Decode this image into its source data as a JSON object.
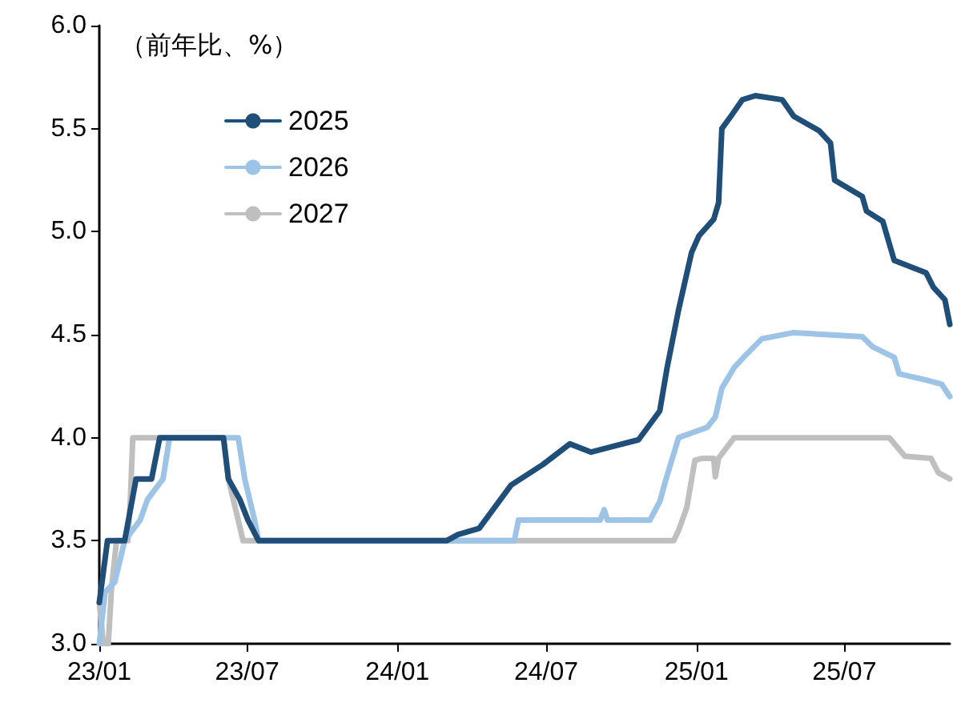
{
  "chart_data": {
    "type": "line",
    "annotations": [
      "（前年比、%）"
    ],
    "legend": "top left",
    "marker": "none",
    "line_style": "solid",
    "grid": false,
    "xlim": [
      "2023-01-01",
      "2025-11-07"
    ],
    "xticks": [
      {
        "value": "2023-01-01",
        "label": "23/01"
      },
      {
        "value": "2023-07-01",
        "label": "23/07"
      },
      {
        "value": "2024-01-01",
        "label": "24/01"
      },
      {
        "value": "2024-07-01",
        "label": "24/07"
      },
      {
        "value": "2025-01-01",
        "label": "25/01"
      },
      {
        "value": "2025-07-01",
        "label": "25/07"
      }
    ],
    "ylim": [
      3,
      6
    ],
    "yticks": [
      {
        "value": 3,
        "label": "3.0"
      },
      {
        "value": 3.5,
        "label": "3.5"
      },
      {
        "value": 4,
        "label": "4.0"
      },
      {
        "value": 4.5,
        "label": "4.5"
      },
      {
        "value": 5,
        "label": "5.0"
      },
      {
        "value": 5.5,
        "label": "5.5"
      },
      {
        "value": 6,
        "label": "6.0"
      }
    ],
    "series": [
      {
        "name": "2025",
        "color": "#1f4e79",
        "x": [
          "2023-01-01",
          "2023-01-11",
          "2023-02-01",
          "2023-02-15",
          "2023-03-06",
          "2023-03-16",
          "2023-06-02",
          "2023-06-08",
          "2023-06-22",
          "2023-07-02",
          "2023-07-15",
          "2024-03-01",
          "2024-03-15",
          "2024-04-10",
          "2024-05-19",
          "2024-06-27",
          "2024-07-30",
          "2024-08-25",
          "2024-10-22",
          "2024-11-17",
          "2024-11-26",
          "2024-12-10",
          "2024-12-26",
          "2025-01-04",
          "2025-01-22",
          "2025-01-28",
          "2025-02-01",
          "2025-02-12",
          "2025-02-26",
          "2025-03-14",
          "2025-04-16",
          "2025-04-30",
          "2025-05-31",
          "2025-06-14",
          "2025-06-19",
          "2025-07-23",
          "2025-07-28",
          "2025-08-17",
          "2025-08-31",
          "2025-10-09",
          "2025-10-18",
          "2025-11-01",
          "2025-11-07"
        ],
        "values": [
          3.2,
          3.5,
          3.5,
          3.8,
          3.8,
          4.0,
          4.0,
          3.8,
          3.7,
          3.6,
          3.5,
          3.5,
          3.53,
          3.56,
          3.77,
          3.87,
          3.97,
          3.93,
          3.99,
          4.13,
          4.34,
          4.62,
          4.9,
          4.98,
          5.06,
          5.14,
          5.5,
          5.56,
          5.64,
          5.66,
          5.64,
          5.56,
          5.49,
          5.43,
          5.25,
          5.17,
          5.1,
          5.05,
          4.86,
          4.8,
          4.73,
          4.67,
          4.55
        ]
      },
      {
        "name": "2026",
        "color": "#9dc3e6",
        "x": [
          "2023-01-01",
          "2023-01-08",
          "2023-01-20",
          "2023-02-01",
          "2023-02-20",
          "2023-03-01",
          "2023-03-20",
          "2023-03-28",
          "2023-06-20",
          "2023-06-28",
          "2023-07-10",
          "2023-07-15",
          "2024-05-23",
          "2024-05-28",
          "2024-09-05",
          "2024-09-10",
          "2024-09-14",
          "2024-11-05",
          "2024-11-17",
          "2024-11-24",
          "2024-12-10",
          "2025-01-14",
          "2025-01-24",
          "2025-02-01",
          "2025-02-16",
          "2025-03-02",
          "2025-03-22",
          "2025-04-30",
          "2025-07-23",
          "2025-08-05",
          "2025-08-31",
          "2025-09-06",
          "2025-10-09",
          "2025-10-28",
          "2025-11-07"
        ],
        "values": [
          3.0,
          3.25,
          3.3,
          3.5,
          3.6,
          3.7,
          3.8,
          4.0,
          4.0,
          3.8,
          3.6,
          3.5,
          3.5,
          3.6,
          3.6,
          3.65,
          3.6,
          3.6,
          3.69,
          3.79,
          4.0,
          4.05,
          4.1,
          4.24,
          4.34,
          4.4,
          4.48,
          4.51,
          4.49,
          4.44,
          4.39,
          4.31,
          4.28,
          4.26,
          4.2
        ]
      },
      {
        "name": "2027",
        "color": "#bfbfbf",
        "x": [
          "2023-01-01",
          "2023-01-06",
          "2023-01-12",
          "2023-01-16",
          "2023-01-22",
          "2023-02-05",
          "2023-02-08",
          "2023-02-11",
          "2023-06-02",
          "2023-06-08",
          "2023-06-20",
          "2023-06-26",
          "2024-12-04",
          "2024-12-10",
          "2024-12-20",
          "2024-12-30",
          "2025-01-08",
          "2025-01-22",
          "2025-01-24",
          "2025-01-28",
          "2025-02-16",
          "2025-08-25",
          "2025-09-13",
          "2025-10-15",
          "2025-10-24",
          "2025-11-07"
        ],
        "values": [
          3.2,
          3.0,
          3.0,
          3.27,
          3.5,
          3.5,
          3.7,
          4.0,
          4.0,
          3.8,
          3.6,
          3.5,
          3.5,
          3.55,
          3.66,
          3.89,
          3.9,
          3.9,
          3.81,
          3.9,
          4.0,
          4.0,
          3.91,
          3.9,
          3.83,
          3.8
        ]
      }
    ]
  }
}
